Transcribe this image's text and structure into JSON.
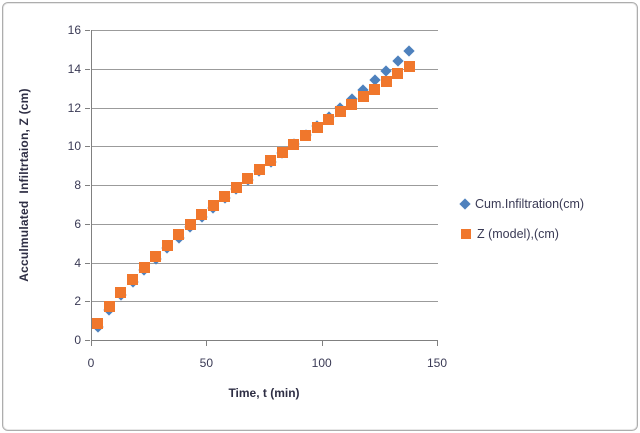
{
  "palette": {
    "background": "#ffffff",
    "frame_border": "#adadad",
    "gridline": "#9b9b9b",
    "axis_line": "#808080",
    "tick_text": "#3a3a55",
    "title_text": "#2e2e44",
    "series_blue": "#4e81bd",
    "series_orange": "#f0772c"
  },
  "chart_data": {
    "type": "scatter",
    "title": "",
    "xlabel": "Time, t (min)",
    "ylabel": "Acculmulated  Infiltrtaion, Z (cm)",
    "xlim": [
      0,
      150
    ],
    "ylim": [
      0,
      16
    ],
    "xticks": [
      0,
      50,
      100,
      150
    ],
    "yticks": [
      0,
      2,
      4,
      6,
      8,
      10,
      12,
      14,
      16
    ],
    "grid": "horizontal",
    "legend_position": "right",
    "x": [
      3,
      8,
      13,
      18,
      23,
      28,
      33,
      38,
      43,
      48,
      53,
      58,
      63,
      68,
      73,
      78,
      83,
      88,
      93,
      98,
      103,
      108,
      113,
      118,
      123,
      128,
      133,
      138
    ],
    "series": [
      {
        "name": "Cum.Infiltration(cm)",
        "marker": "diamond",
        "color": "#4e81bd",
        "values": [
          0.68,
          1.56,
          2.31,
          2.97,
          3.6,
          4.18,
          4.74,
          5.29,
          5.81,
          6.33,
          6.82,
          7.31,
          7.79,
          8.26,
          8.73,
          9.21,
          9.67,
          10.12,
          10.58,
          11.04,
          11.51,
          11.98,
          12.44,
          12.92,
          13.4,
          13.89,
          14.4,
          14.91
        ]
      },
      {
        "name": "Z (model),(cm)",
        "marker": "square",
        "color": "#f0772c",
        "values": [
          0.83,
          1.71,
          2.46,
          3.12,
          3.75,
          4.33,
          4.89,
          5.43,
          5.95,
          6.46,
          6.95,
          7.43,
          7.89,
          8.35,
          8.8,
          9.25,
          9.68,
          10.11,
          10.53,
          10.95,
          11.36,
          11.77,
          12.16,
          12.56,
          12.95,
          13.34,
          13.73,
          14.11
        ]
      }
    ]
  }
}
